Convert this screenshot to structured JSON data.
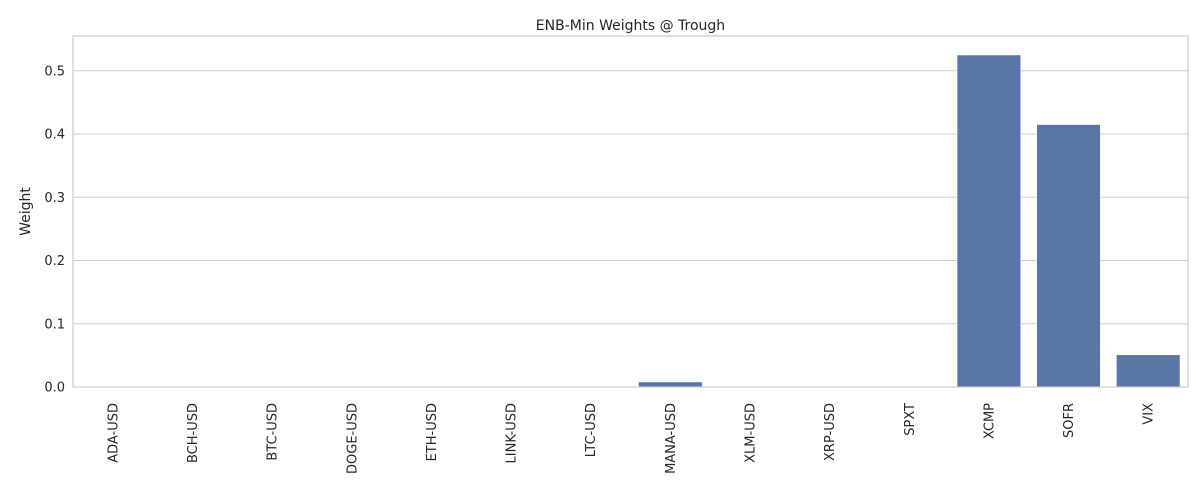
{
  "chart_data": {
    "type": "bar",
    "title": "ENB-Min Weights @ Trough",
    "xlabel": "",
    "ylabel": "Weight",
    "categories": [
      "ADA-USD",
      "BCH-USD",
      "BTC-USD",
      "DOGE-USD",
      "ETH-USD",
      "LINK-USD",
      "LTC-USD",
      "MANA-USD",
      "XLM-USD",
      "XRP-USD",
      "SPXT",
      "XCMP",
      "SOFR",
      "VIX"
    ],
    "values": [
      0.0,
      0.0,
      0.0,
      0.0,
      0.0,
      0.0,
      0.0,
      0.008,
      0.0,
      0.0,
      0.0,
      0.525,
      0.415,
      0.051
    ],
    "ylim": [
      0,
      0.555
    ],
    "yticks": [
      0.0,
      0.1,
      0.2,
      0.3,
      0.4,
      0.5
    ],
    "ytick_labels": [
      "0.0",
      "0.1",
      "0.2",
      "0.3",
      "0.4",
      "0.5"
    ],
    "grid": "horizontal",
    "bar_color": "#5975a4",
    "grid_color": "#cccccc",
    "text_color": "#262626"
  }
}
